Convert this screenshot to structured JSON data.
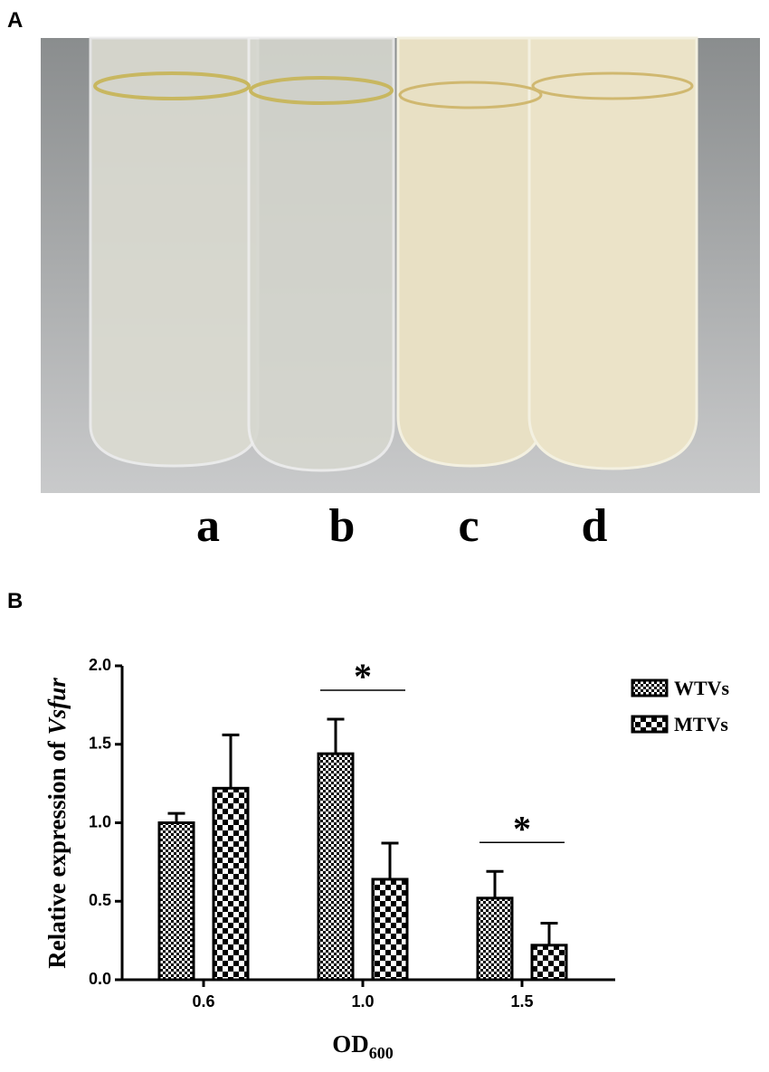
{
  "panel_labels": [
    "A",
    "B"
  ],
  "tube_labels": [
    "a",
    "b",
    "c",
    "d"
  ],
  "chart_data": {
    "type": "bar",
    "ylabel_parts": [
      "Relative expression of",
      "Vsfur"
    ],
    "xlabel_parts": [
      "OD",
      "600"
    ],
    "categories": [
      "0.6",
      "1.0",
      "1.5"
    ],
    "series": [
      {
        "name": "WTVs",
        "color": "#000000",
        "pattern": "small-check",
        "values": [
          1.0,
          1.44,
          0.52
        ],
        "errors": [
          0.06,
          0.22,
          0.17
        ]
      },
      {
        "name": "MTVs",
        "color": "#000000",
        "pattern": "large-check",
        "values": [
          1.22,
          0.64,
          0.22
        ],
        "errors": [
          0.34,
          0.23,
          0.14
        ]
      }
    ],
    "significance_labels": [
      null,
      "*",
      "*"
    ],
    "ylim": [
      0,
      2.0
    ],
    "yticks": [
      {
        "value": 0,
        "label": "0.0"
      },
      {
        "value": 0.5,
        "label": "0.5"
      },
      {
        "value": 1.0,
        "label": "1.0"
      },
      {
        "value": 1.5,
        "label": "1.5"
      },
      {
        "value": 2.0,
        "label": "2.0"
      }
    ],
    "legend": "top-right"
  }
}
